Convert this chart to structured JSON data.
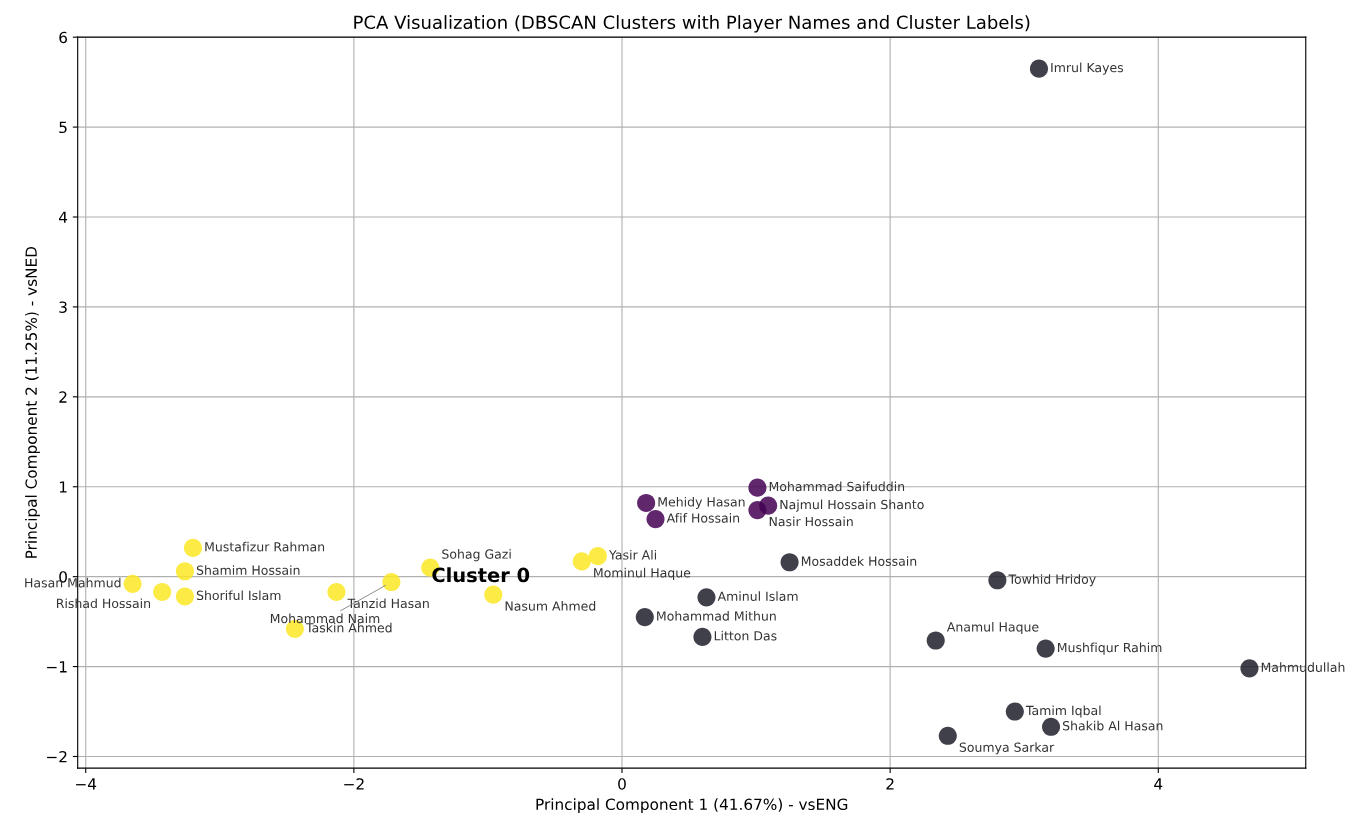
{
  "chart_data": {
    "type": "scatter",
    "title": "PCA Visualization (DBSCAN Clusters with Player Names and Cluster Labels)",
    "xlabel": "Principal Component 1 (41.67%) - vsENG",
    "ylabel": "Principal Component 2 (11.25%) - vsNED",
    "series": [
      {
        "color": "#fde725",
        "x": [
          -3.2,
          -3.26,
          -3.65,
          -3.43,
          -3.26,
          -2.13,
          -2.44,
          -1.72,
          -1.43,
          -0.96,
          -0.3,
          -0.18
        ],
        "values": [
          0.32,
          0.06,
          -0.08,
          -0.17,
          -0.22,
          -0.17,
          -0.58,
          -0.06,
          0.1,
          -0.2,
          0.17,
          0.23
        ]
      },
      {
        "color": "#440154",
        "x": [
          1.01,
          0.18,
          0.25,
          1.09,
          1.01
        ],
        "values": [
          0.99,
          0.82,
          0.64,
          0.79,
          0.74
        ]
      },
      {
        "color": "#1e1e2c",
        "x": [
          3.11,
          1.25,
          0.63,
          0.17,
          0.6,
          2.8,
          2.34,
          3.16,
          4.68,
          2.93,
          3.2,
          2.43
        ],
        "values": [
          5.65,
          0.16,
          -0.23,
          -0.45,
          -0.67,
          -0.04,
          -0.71,
          -0.8,
          -1.02,
          -1.5,
          -1.67,
          -1.77
        ]
      }
    ],
    "annotations": [
      {
        "text": "Mustafizur Rahman",
        "x": -3.2,
        "y": 0.32
      },
      {
        "text": "Shamim Hossain",
        "x": -3.26,
        "y": 0.06
      },
      {
        "text": "Hasan Mahmud",
        "x": -3.65,
        "y": -0.08
      },
      {
        "text": "Rishad Hossain",
        "x": -3.43,
        "y": -0.17
      },
      {
        "text": "Shoriful Islam",
        "x": -3.26,
        "y": -0.22
      },
      {
        "text": "Tanzid Hasan",
        "x": -2.13,
        "y": -0.17
      },
      {
        "text": "Taskin Ahmed",
        "x": -2.44,
        "y": -0.58
      },
      {
        "text": "Mohammad Naim",
        "x": -1.72,
        "y": -0.06
      },
      {
        "text": "Sohag Gazi",
        "x": -1.43,
        "y": 0.1
      },
      {
        "text": "Nasum Ahmed",
        "x": -0.96,
        "y": -0.2
      },
      {
        "text": "Mominul Haque",
        "x": -0.3,
        "y": 0.17
      },
      {
        "text": "Yasir Ali",
        "x": -0.18,
        "y": 0.23
      },
      {
        "text": "Mohammad Saifuddin",
        "x": 1.01,
        "y": 0.99
      },
      {
        "text": "Mehidy Hasan",
        "x": 0.18,
        "y": 0.82
      },
      {
        "text": "Afif Hossain",
        "x": 0.25,
        "y": 0.64
      },
      {
        "text": "Najmul Hossain Shanto",
        "x": 1.09,
        "y": 0.79
      },
      {
        "text": "Nasir Hossain",
        "x": 1.01,
        "y": 0.74
      },
      {
        "text": "Imrul Kayes",
        "x": 3.11,
        "y": 5.65
      },
      {
        "text": "Mosaddek Hossain",
        "x": 1.25,
        "y": 0.16
      },
      {
        "text": "Aminul Islam",
        "x": 0.63,
        "y": -0.23
      },
      {
        "text": "Mohammad Mithun",
        "x": 0.17,
        "y": -0.45
      },
      {
        "text": "Litton Das",
        "x": 0.6,
        "y": -0.67
      },
      {
        "text": "Towhid Hridoy",
        "x": 2.8,
        "y": -0.04
      },
      {
        "text": "Anamul Haque",
        "x": 2.34,
        "y": -0.71
      },
      {
        "text": "Mushfiqur Rahim",
        "x": 3.16,
        "y": -0.8
      },
      {
        "text": "Mahmudullah",
        "x": 4.68,
        "y": -1.02
      },
      {
        "text": "Tamim Iqbal",
        "x": 2.93,
        "y": -1.5
      },
      {
        "text": "Shakib Al Hasan",
        "x": 3.2,
        "y": -1.67
      },
      {
        "text": "Soumya Sarkar",
        "x": 2.43,
        "y": -1.77
      },
      "Cluster 0"
    ],
    "xlim": [
      -4.06,
      5.1
    ],
    "ylim": [
      -2.13,
      6.0
    ],
    "xticks": [
      -4,
      -2,
      0,
      2,
      4
    ],
    "yticks": [
      -2,
      -1,
      0,
      1,
      2,
      3,
      4,
      5,
      6
    ],
    "grid": true,
    "legend": false,
    "marker": "circle"
  }
}
